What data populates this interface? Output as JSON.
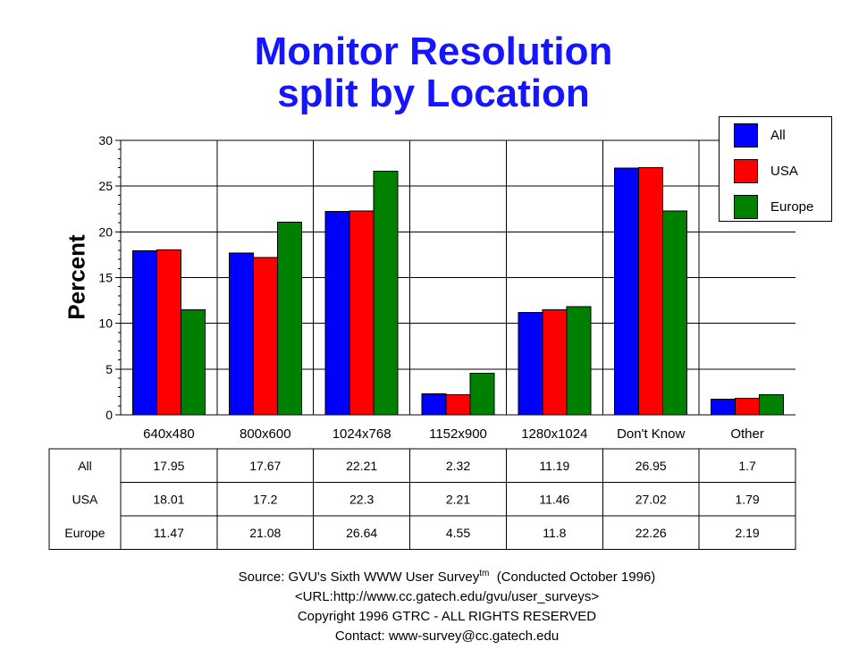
{
  "title_line1": "Monitor Resolution",
  "title_line2": "split by Location",
  "colors": {
    "All": "#0000ff",
    "USA": "#ff0000",
    "Europe": "#008000",
    "title": "#1515ff"
  },
  "source": {
    "line1_prefix": "Source: GVU's Sixth WWW User Survey",
    "line1_sup": "tm",
    "line1_suffix": "  (Conducted October 1996)",
    "line2": "<URL:http://www.cc.gatech.edu/gvu/user_surveys>",
    "line3": "Copyright 1996 GTRC -  ALL RIGHTS RESERVED",
    "line4": "Contact: www-survey@cc.gatech.edu"
  },
  "chart_data": {
    "type": "bar",
    "title": "Monitor Resolution split by Location",
    "xlabel": "",
    "ylabel": "Percent",
    "ylim": [
      0,
      30
    ],
    "yticks": [
      0,
      5,
      10,
      15,
      20,
      25,
      30
    ],
    "grid": true,
    "legend_position": "top-right",
    "categories": [
      "640x480",
      "800x600",
      "1024x768",
      "1152x900",
      "1280x1024",
      "Don't Know",
      "Other"
    ],
    "series": [
      {
        "name": "All",
        "values": [
          17.95,
          17.67,
          22.21,
          2.32,
          11.19,
          26.95,
          1.7
        ],
        "labels": [
          "17.95",
          "17.67",
          "22.21",
          "2.32",
          "11.19",
          "26.95",
          "1.7"
        ]
      },
      {
        "name": "USA",
        "values": [
          18.01,
          17.2,
          22.3,
          2.21,
          11.46,
          27.02,
          1.79
        ],
        "labels": [
          "18.01",
          "17.2",
          "22.3",
          "2.21",
          "11.46",
          "27.02",
          "1.79"
        ]
      },
      {
        "name": "Europe",
        "values": [
          11.47,
          21.08,
          26.64,
          4.55,
          11.8,
          22.26,
          2.19
        ],
        "labels": [
          "11.47",
          "21.08",
          "26.64",
          "4.55",
          "11.8",
          "22.26",
          "2.19"
        ]
      }
    ]
  }
}
